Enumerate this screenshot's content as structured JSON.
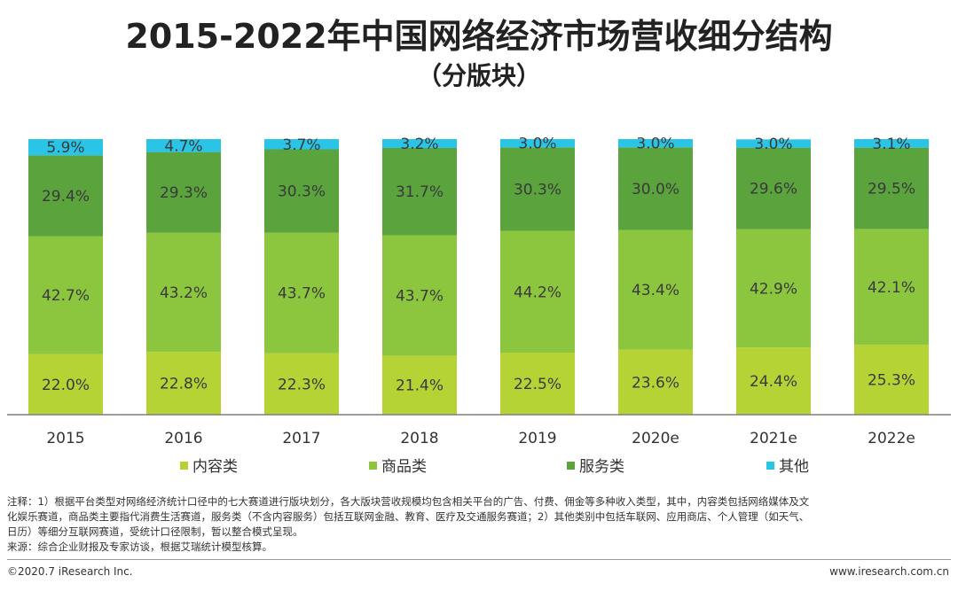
{
  "chart_data": {
    "type": "bar",
    "stacked": true,
    "title": "2015-2022年中国网络经济市场营收细分结构",
    "subtitle": "（分版块）",
    "categories": [
      "2015",
      "2016",
      "2017",
      "2018",
      "2019",
      "2020e",
      "2021e",
      "2022e"
    ],
    "series": [
      {
        "name": "内容类",
        "color": "#b5d334",
        "values": [
          22.0,
          22.8,
          22.3,
          21.4,
          22.5,
          23.6,
          24.4,
          25.3
        ]
      },
      {
        "name": "商品类",
        "color": "#8cc63f",
        "values": [
          42.7,
          43.2,
          43.7,
          43.7,
          44.2,
          43.4,
          42.9,
          42.1
        ]
      },
      {
        "name": "服务类",
        "color": "#5aa33d",
        "values": [
          29.4,
          29.3,
          30.3,
          31.7,
          30.3,
          30.0,
          29.6,
          29.5
        ]
      },
      {
        "name": "其他",
        "color": "#29c4e6",
        "values": [
          5.9,
          4.7,
          3.7,
          3.2,
          3.0,
          3.0,
          3.0,
          3.1
        ]
      }
    ],
    "value_suffix": "%",
    "ylim": [
      0,
      100
    ],
    "xlabel": "",
    "ylabel": "",
    "legend_position": "bottom"
  },
  "notes": {
    "line1": "注释：1）根据平台类型对网络经济统计口径中的七大赛道进行版块划分，各大版块营收规模均包含相关平台的广告、付费、佣金等多种收入类型，其中，内容类包括网络媒体及文",
    "line2": "化娱乐赛道，商品类主要指代消费生活赛道，服务类（不含内容服务）包括互联网金融、教育、医疗及交通服务赛道；2）其他类别中包括车联网、应用商店、个人管理（如天气、",
    "line3": "日历）等细分互联网赛道，受统计口径限制，暂以整合模式呈现。",
    "source": "来源：综合企业财报及专家访谈，根据艾瑞统计模型核算。"
  },
  "footer": {
    "copyright": "©2020.7 iResearch Inc.",
    "website": "www.iresearch.com.cn"
  }
}
